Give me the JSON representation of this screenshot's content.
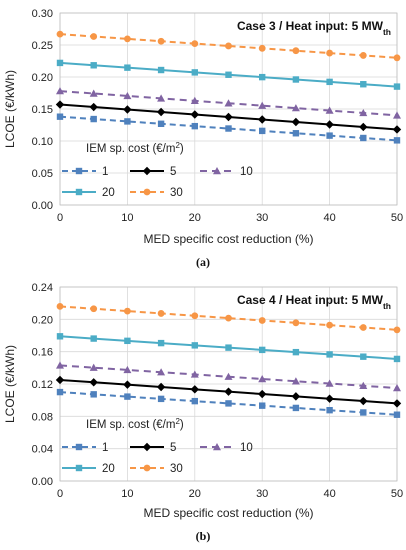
{
  "chart_data": [
    {
      "type": "line",
      "panel_label": "(a)",
      "case_title": "Case 3 / Heat input: 5 MW",
      "case_title_sub": "th",
      "xlabel": "MED specific cost reduction (%)",
      "ylabel": "LCOE (€/kWh)",
      "xlim": [
        0,
        50
      ],
      "ylim": [
        0.0,
        0.3
      ],
      "xticks": [
        0,
        10,
        20,
        30,
        40,
        50
      ],
      "yticks": [
        0.0,
        0.05,
        0.1,
        0.15,
        0.2,
        0.25,
        0.3
      ],
      "ytick_labels": [
        "0.00",
        "0.05",
        "0.10",
        "0.15",
        "0.20",
        "0.25",
        "0.30"
      ],
      "grid": true,
      "legend_title": "IEM sp. cost (€/m²)",
      "legend_title_pre": "IEM sp. cost (€/m",
      "legend_title_sup": "2",
      "legend_title_post": ")",
      "legend_position": "lower-left",
      "x": [
        0,
        5,
        10,
        15,
        20,
        25,
        30,
        35,
        40,
        45,
        50
      ],
      "series": [
        {
          "name": "1",
          "color": "#4f81bd",
          "dash": "6,4",
          "marker": "square",
          "values": [
            0.138,
            0.1343,
            0.1306,
            0.1269,
            0.1232,
            0.1195,
            0.1158,
            0.1121,
            0.1084,
            0.1047,
            0.101
          ]
        },
        {
          "name": "5",
          "color": "#000000",
          "dash": "",
          "marker": "diamond",
          "values": [
            0.157,
            0.1531,
            0.1492,
            0.1453,
            0.1414,
            0.1375,
            0.1336,
            0.1297,
            0.1258,
            0.1219,
            0.118
          ]
        },
        {
          "name": "10",
          "color": "#8064a2",
          "dash": "7,5",
          "marker": "triangle",
          "values": [
            0.178,
            0.1742,
            0.1704,
            0.1666,
            0.1628,
            0.159,
            0.1552,
            0.1514,
            0.1476,
            0.1438,
            0.14
          ]
        },
        {
          "name": "20",
          "color": "#4bacc6",
          "dash": "",
          "marker": "square",
          "values": [
            0.222,
            0.2183,
            0.2146,
            0.2109,
            0.2072,
            0.2035,
            0.1998,
            0.1961,
            0.1924,
            0.1887,
            0.185
          ]
        },
        {
          "name": "30",
          "color": "#f79646",
          "dash": "6,4",
          "marker": "circle",
          "values": [
            0.267,
            0.2633,
            0.2596,
            0.2559,
            0.2522,
            0.2485,
            0.2448,
            0.2411,
            0.2374,
            0.2337,
            0.23
          ]
        }
      ]
    },
    {
      "type": "line",
      "panel_label": "(b)",
      "case_title": "Case 4 / Heat input: 5 MW",
      "case_title_sub": "th",
      "xlabel": "MED specific cost reduction (%)",
      "ylabel": "LCOE (€/kWh)",
      "xlim": [
        0,
        50
      ],
      "ylim": [
        0.0,
        0.24
      ],
      "xticks": [
        0,
        10,
        20,
        30,
        40,
        50
      ],
      "yticks": [
        0.0,
        0.04,
        0.08,
        0.12,
        0.16,
        0.2,
        0.24
      ],
      "ytick_labels": [
        "0.00",
        "0.04",
        "0.08",
        "0.12",
        "0.16",
        "0.20",
        "0.24"
      ],
      "grid": true,
      "legend_title": "IEM sp. cost (€/m²)",
      "legend_title_pre": "IEM sp. cost (€/m",
      "legend_title_sup": "2",
      "legend_title_post": ")",
      "legend_position": "lower-left",
      "x": [
        0,
        5,
        10,
        15,
        20,
        25,
        30,
        35,
        40,
        45,
        50
      ],
      "series": [
        {
          "name": "1",
          "color": "#4f81bd",
          "dash": "6,4",
          "marker": "square",
          "values": [
            0.11,
            0.1072,
            0.1044,
            0.1016,
            0.0988,
            0.096,
            0.0932,
            0.0904,
            0.0876,
            0.0848,
            0.082
          ]
        },
        {
          "name": "5",
          "color": "#000000",
          "dash": "",
          "marker": "diamond",
          "values": [
            0.125,
            0.1221,
            0.1192,
            0.1163,
            0.1134,
            0.1105,
            0.1076,
            0.1047,
            0.1018,
            0.0989,
            0.096
          ]
        },
        {
          "name": "10",
          "color": "#8064a2",
          "dash": "7,5",
          "marker": "triangle",
          "values": [
            0.143,
            0.1402,
            0.1374,
            0.1346,
            0.1318,
            0.129,
            0.1262,
            0.1234,
            0.1206,
            0.1178,
            0.115
          ]
        },
        {
          "name": "20",
          "color": "#4bacc6",
          "dash": "",
          "marker": "square",
          "values": [
            0.179,
            0.1762,
            0.1734,
            0.1706,
            0.1678,
            0.165,
            0.1622,
            0.1594,
            0.1566,
            0.1538,
            0.151
          ]
        },
        {
          "name": "30",
          "color": "#f79646",
          "dash": "6,4",
          "marker": "circle",
          "values": [
            0.216,
            0.2131,
            0.2102,
            0.2073,
            0.2044,
            0.2015,
            0.1986,
            0.1957,
            0.1928,
            0.1899,
            0.187
          ]
        }
      ]
    }
  ]
}
